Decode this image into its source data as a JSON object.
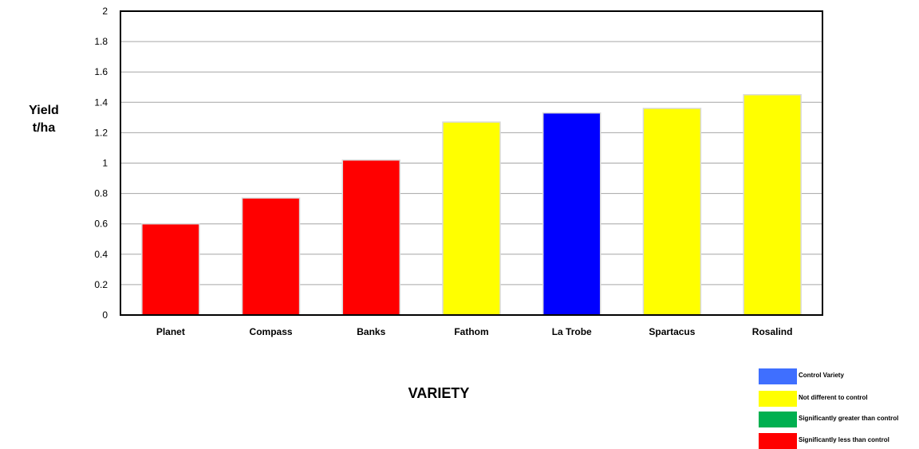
{
  "chart_data": {
    "type": "bar",
    "categories": [
      "Planet",
      "Compass",
      "Banks",
      "Fathom",
      "La Trobe",
      "Spartacus",
      "Rosalind"
    ],
    "values": [
      0.6,
      0.77,
      1.02,
      1.27,
      1.33,
      1.36,
      1.45
    ],
    "bar_status": [
      "less",
      "less",
      "less",
      "same",
      "control",
      "same",
      "same"
    ],
    "title": "",
    "xlabel": "VARIETY",
    "ylabel": [
      "Yield",
      "t/ha"
    ],
    "ylim": [
      0,
      2
    ],
    "yticks": [
      "0",
      "0.2",
      "0.4",
      "0.6",
      "0.8",
      "1",
      "1.2",
      "1.4",
      "1.6",
      "1.8",
      "2"
    ],
    "grid": true,
    "legend_position": "bottom-right"
  },
  "legend": [
    {
      "key": "control",
      "label": "Control Variety",
      "color": "#3f6fff"
    },
    {
      "key": "same",
      "label": "Not different to control",
      "color": "#ffff00"
    },
    {
      "key": "greater",
      "label": "Significantly greater than control",
      "color": "#00b050"
    },
    {
      "key": "less",
      "label": "Significantly less than control",
      "color": "#ff0000"
    }
  ],
  "bar_colors": {
    "control": "#0000ff",
    "same": "#ffff00",
    "greater": "#00b050",
    "less": "#ff0000"
  }
}
